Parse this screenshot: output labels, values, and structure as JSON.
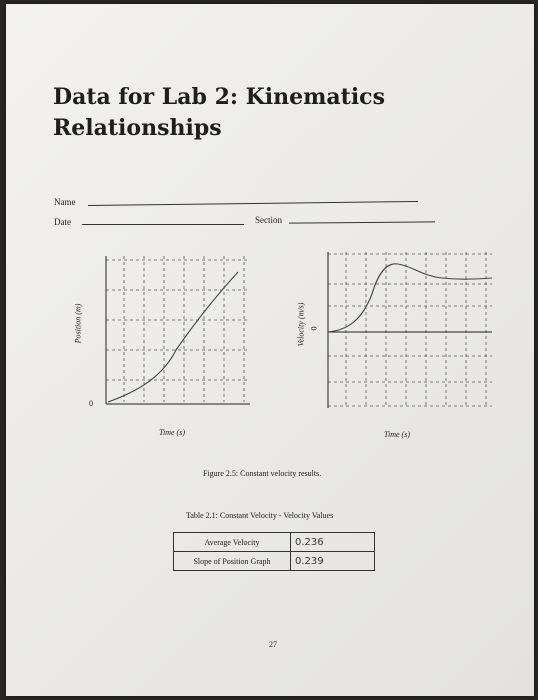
{
  "title": "Data for Lab 2: Kinematics Relationships",
  "form": {
    "name_label": "Name",
    "date_label": "Date",
    "section_label": "Section"
  },
  "position_graph": {
    "ylabel": "Position (m)",
    "xlabel": "Time (s)",
    "origin_label": "0"
  },
  "velocity_graph": {
    "ylabel": "Velocity (m/s)",
    "xlabel": "Time (s)",
    "zero_label": "0"
  },
  "figure_caption": "Figure 2.5: Constant velocity results.",
  "table": {
    "caption": "Table 2.1: Constant Velocity - Velocity Values",
    "rows": [
      {
        "label": "Average Velocity",
        "value": "0.236"
      },
      {
        "label": "Slope of Position Graph",
        "value": "0.239"
      }
    ]
  },
  "page_number": "27",
  "colors": {
    "paper": "#efeeea",
    "ink": "#222222",
    "grid": "#555555"
  }
}
